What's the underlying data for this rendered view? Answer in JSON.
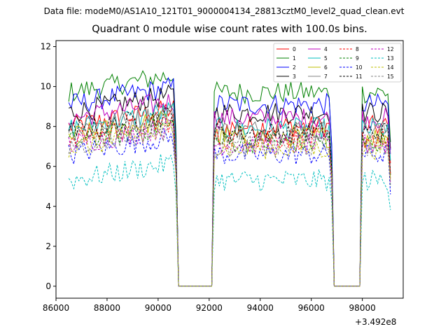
{
  "chart_data": {
    "type": "line",
    "suptitle": "Data file: modeM0/AS1A10_121T01_9000004134_28813cztM0_level2_quad_clean.evt",
    "title": "Quadrant 0 module wise count rates with 100.0s bins.",
    "x_offset_label": "+3.492e8",
    "xlim": [
      86000,
      99600
    ],
    "ylim": [
      -0.6,
      12.3
    ],
    "x_ticks": [
      86000,
      88000,
      90000,
      92000,
      94000,
      96000,
      98000
    ],
    "y_ticks": [
      0,
      2,
      4,
      6,
      8,
      10,
      12
    ],
    "x_tick_labels": [
      "86000",
      "88000",
      "90000",
      "92000",
      "94000",
      "96000",
      "98000"
    ],
    "y_tick_labels": [
      "0",
      "2",
      "4",
      "6",
      "8",
      "10",
      "12"
    ],
    "legend_position": "top-right",
    "segments": [
      {
        "start": 86500,
        "end": 90700,
        "step": 100
      },
      {
        "start": 92200,
        "end": 96800,
        "step": 100
      },
      {
        "start": 98000,
        "end": 99100,
        "step": 100
      }
    ],
    "gap_value": 0,
    "series": [
      {
        "name": "0",
        "color": "#ff0000",
        "dashed": false,
        "mean": 8.0
      },
      {
        "name": "1",
        "color": "#008000",
        "dashed": false,
        "mean": 9.7
      },
      {
        "name": "2",
        "color": "#0000ff",
        "dashed": false,
        "mean": 9.1
      },
      {
        "name": "3",
        "color": "#000000",
        "dashed": false,
        "mean": 8.7
      },
      {
        "name": "4",
        "color": "#bf00bf",
        "dashed": false,
        "mean": 8.4
      },
      {
        "name": "5",
        "color": "#00bfbf",
        "dashed": false,
        "mean": 7.9
      },
      {
        "name": "6",
        "color": "#bfbf00",
        "dashed": false,
        "mean": 7.5
      },
      {
        "name": "7",
        "color": "#808080",
        "dashed": false,
        "mean": 7.8
      },
      {
        "name": "8",
        "color": "#ff0000",
        "dashed": true,
        "mean": 7.4
      },
      {
        "name": "9",
        "color": "#008000",
        "dashed": true,
        "mean": 7.2
      },
      {
        "name": "10",
        "color": "#0000ff",
        "dashed": true,
        "mean": 6.6
      },
      {
        "name": "11",
        "color": "#000000",
        "dashed": true,
        "mean": 7.7
      },
      {
        "name": "12",
        "color": "#bf00bf",
        "dashed": true,
        "mean": 7.1
      },
      {
        "name": "13",
        "color": "#00bfbf",
        "dashed": true,
        "mean": 5.3
      },
      {
        "name": "14",
        "color": "#bfbf00",
        "dashed": true,
        "mean": 6.9
      },
      {
        "name": "15",
        "color": "#808080",
        "dashed": true,
        "mean": 7.0
      }
    ]
  }
}
